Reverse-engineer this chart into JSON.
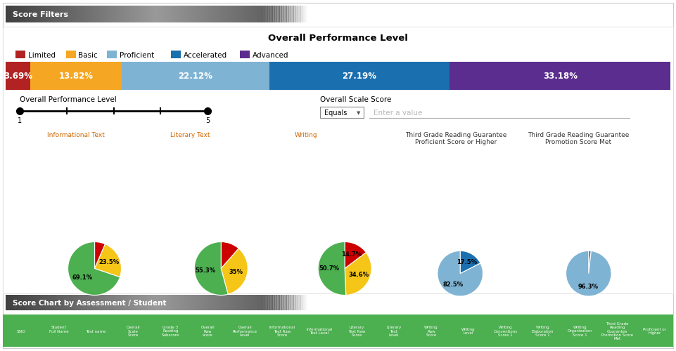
{
  "title": "Overall Performance Level",
  "legend_items": [
    "Limited",
    "Basic",
    "Proficient",
    "Accelerated",
    "Advanced"
  ],
  "legend_colors": [
    "#b22222",
    "#f5a623",
    "#7fb3d3",
    "#1a6faf",
    "#5b2d8e"
  ],
  "bar_values": [
    3.69,
    13.82,
    22.12,
    27.19,
    33.18
  ],
  "bar_colors": [
    "#b22222",
    "#f5a623",
    "#7fb3d3",
    "#1a6faf",
    "#5b2d8e"
  ],
  "bar_labels": [
    "3.69%",
    "13.82%",
    "22.12%",
    "27.19%",
    "33.18%"
  ],
  "slider_label": "Overall Performance Level",
  "slider_range": [
    1,
    5
  ],
  "scale_score_label": "Overall Scale Score",
  "scale_score_dropdown": "Equals",
  "scale_score_placeholder": "Enter a value",
  "pie_titles": [
    "Informational Text",
    "Literary Text",
    "Writing",
    "Third Grade Reading Guarantee\nProficient Score or Higher",
    "Third Grade Reading Guarantee\nPromotion Score Met"
  ],
  "pie_title_colors": [
    "#cc6600",
    "#cc6600",
    "#cc6600",
    "#333333",
    "#333333"
  ],
  "pie1_values": [
    6.4,
    23.5,
    69.1
  ],
  "pie1_labels": [
    "",
    "23.5%",
    "69.1%"
  ],
  "pie1_colors": [
    "#cc0000",
    "#f5c518",
    "#4caf50"
  ],
  "pie2_values": [
    11.7,
    35.0,
    55.3
  ],
  "pie2_labels": [
    "",
    "35%",
    "55.3%"
  ],
  "pie2_colors": [
    "#cc0000",
    "#f5c518",
    "#4caf50"
  ],
  "pie3_values": [
    14.7,
    34.6,
    50.7
  ],
  "pie3_labels": [
    "14.7%",
    "34.6%",
    "50.7%"
  ],
  "pie3_colors": [
    "#cc0000",
    "#f5c518",
    "#4caf50"
  ],
  "pie4_values": [
    17.5,
    82.5
  ],
  "pie4_labels": [
    "17.5%",
    "82.5%"
  ],
  "pie4_colors": [
    "#1a6faf",
    "#7fb3d3"
  ],
  "pie5_values": [
    1.7,
    96.3
  ],
  "pie5_labels": [
    "",
    "96.3%"
  ],
  "pie5_colors": [
    "#2255aa",
    "#7fb3d3"
  ],
  "bg_color": "#ffffff",
  "header_text": "Score Filters",
  "header2_text": "Score Chart by Assessment / Student",
  "table_header_color": "#4caf50",
  "table_cols": [
    "SSID",
    "Student\nFull Name\n.",
    "Test name",
    "Overall\nScale\nScore",
    "Grade 3\nReading\nSubscore",
    "Overall\nRaw\nscore",
    "Overall\nPerformance\nLevel",
    "Informational\nText Raw\nScore",
    "Informational\nText Level",
    "Literary\nText Raw\nScore",
    "Literary\nText\nLevel",
    "Writing\nRaw\nScore",
    "Writing\nLevel",
    "Writing\nConventions\nScore 1",
    "Writing\nElaboration\nScore 1",
    "Writing\nOrganization\nScore 1",
    "Third Grade\nReading\nGuarantee\nPromotion Score\nMet",
    "Proficient or\nHigher"
  ]
}
